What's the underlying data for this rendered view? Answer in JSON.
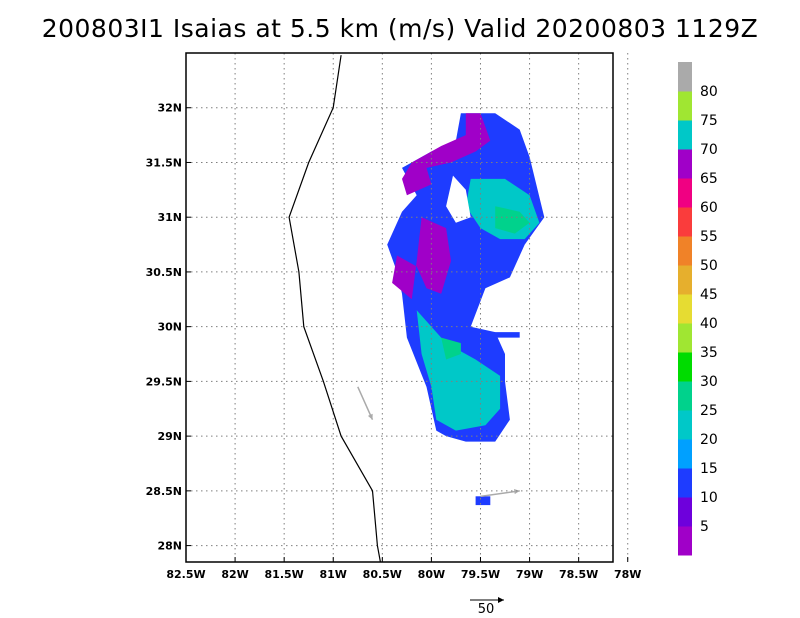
{
  "chart_data": {
    "type": "heatmap",
    "title": "200803I1 Isaias at 5.5 km (m/s) Valid 20200803 1129Z",
    "x_ticks": [
      "82.5W",
      "82W",
      "81.5W",
      "81W",
      "80.5W",
      "80W",
      "79.5W",
      "79W",
      "78.5W",
      "78W"
    ],
    "x_values": [
      -82.5,
      -82,
      -81.5,
      -81,
      -80.5,
      -80,
      -79.5,
      -79,
      -78.5,
      -78
    ],
    "y_ticks": [
      "28N",
      "28.5N",
      "29N",
      "29.5N",
      "30N",
      "30.5N",
      "31N",
      "31.5N",
      "32N"
    ],
    "y_values": [
      28,
      28.5,
      29,
      29.5,
      30,
      30.5,
      31,
      31.5,
      32
    ],
    "xlim": [
      -82.5,
      -78.15
    ],
    "ylim": [
      27.85,
      32.5
    ],
    "grid": true,
    "colorbar": {
      "labels": [
        "5",
        "10",
        "15",
        "20",
        "25",
        "30",
        "35",
        "40",
        "45",
        "50",
        "55",
        "60",
        "65",
        "70",
        "75",
        "80"
      ],
      "label_values": [
        5,
        10,
        15,
        20,
        25,
        30,
        35,
        40,
        45,
        50,
        55,
        60,
        65,
        70,
        75,
        80
      ],
      "colors": [
        "#a000c8",
        "#6e00dc",
        "#1e3cff",
        "#00a0ff",
        "#00c8c8",
        "#00d28c",
        "#00dc00",
        "#a0e632",
        "#e6dc32",
        "#e6af2d",
        "#f08228",
        "#fa3c3c",
        "#f00082",
        "#a000c8",
        "#00c8c8",
        "#a0e632",
        "#aaaaaa"
      ]
    },
    "coastline": [
      [
        -80.92,
        32.48
      ],
      [
        -81.0,
        32.0
      ],
      [
        -81.25,
        31.5
      ],
      [
        -81.45,
        31.0
      ],
      [
        -81.35,
        30.5
      ],
      [
        -81.3,
        30.0
      ],
      [
        -81.1,
        29.5
      ],
      [
        -80.92,
        29.0
      ],
      [
        -80.6,
        28.5
      ],
      [
        -80.55,
        28.0
      ],
      [
        -80.52,
        27.85
      ]
    ],
    "wind_regions": [
      {
        "name": "outer-blue",
        "speed": 14,
        "polygon": [
          [
            -79.7,
            31.95
          ],
          [
            -79.35,
            31.95
          ],
          [
            -79.1,
            31.8
          ],
          [
            -79.0,
            31.55
          ],
          [
            -78.85,
            31.0
          ],
          [
            -79.05,
            30.75
          ],
          [
            -79.2,
            30.45
          ],
          [
            -79.45,
            30.35
          ],
          [
            -79.6,
            30.0
          ],
          [
            -79.35,
            29.95
          ],
          [
            -79.25,
            29.75
          ],
          [
            -79.25,
            29.5
          ],
          [
            -79.2,
            29.15
          ],
          [
            -79.35,
            28.95
          ],
          [
            -79.65,
            28.95
          ],
          [
            -79.85,
            29.0
          ],
          [
            -79.95,
            29.05
          ],
          [
            -80.05,
            29.45
          ],
          [
            -80.25,
            29.9
          ],
          [
            -80.3,
            30.3
          ],
          [
            -80.35,
            30.5
          ],
          [
            -80.45,
            30.75
          ],
          [
            -80.3,
            31.05
          ],
          [
            -80.15,
            31.2
          ],
          [
            -80.3,
            31.45
          ],
          [
            -80.0,
            31.6
          ],
          [
            -79.75,
            31.7
          ]
        ]
      },
      {
        "name": "purple-north",
        "speed": 67,
        "polygon": [
          [
            -79.65,
            31.95
          ],
          [
            -79.5,
            31.95
          ],
          [
            -79.4,
            31.7
          ],
          [
            -79.55,
            31.6
          ],
          [
            -79.8,
            31.5
          ],
          [
            -80.05,
            31.45
          ],
          [
            -80.0,
            31.3
          ],
          [
            -80.25,
            31.2
          ],
          [
            -80.3,
            31.35
          ],
          [
            -80.2,
            31.5
          ],
          [
            -79.9,
            31.65
          ],
          [
            -79.65,
            31.75
          ]
        ]
      },
      {
        "name": "purple-west",
        "speed": 67,
        "polygon": [
          [
            -80.1,
            31.0
          ],
          [
            -79.85,
            30.9
          ],
          [
            -79.8,
            30.6
          ],
          [
            -79.85,
            30.45
          ],
          [
            -79.9,
            30.3
          ],
          [
            -80.05,
            30.35
          ],
          [
            -80.15,
            30.55
          ],
          [
            -80.35,
            30.65
          ],
          [
            -80.4,
            30.4
          ],
          [
            -80.2,
            30.25
          ],
          [
            -80.15,
            30.6
          ]
        ]
      },
      {
        "name": "cyan-northeast",
        "speed": 21,
        "polygon": [
          [
            -79.6,
            31.35
          ],
          [
            -79.25,
            31.35
          ],
          [
            -79.0,
            31.2
          ],
          [
            -78.9,
            30.95
          ],
          [
            -79.05,
            30.8
          ],
          [
            -79.3,
            30.8
          ],
          [
            -79.5,
            30.9
          ],
          [
            -79.65,
            31.1
          ]
        ]
      },
      {
        "name": "cyan-south",
        "speed": 21,
        "polygon": [
          [
            -80.15,
            30.15
          ],
          [
            -79.85,
            29.85
          ],
          [
            -79.55,
            29.7
          ],
          [
            -79.3,
            29.55
          ],
          [
            -79.3,
            29.25
          ],
          [
            -79.45,
            29.1
          ],
          [
            -79.75,
            29.05
          ],
          [
            -79.95,
            29.15
          ],
          [
            -80.0,
            29.45
          ],
          [
            -80.1,
            29.75
          ]
        ]
      },
      {
        "name": "green-core-north",
        "speed": 26,
        "polygon": [
          [
            -79.35,
            31.1
          ],
          [
            -79.1,
            31.05
          ],
          [
            -79.0,
            30.95
          ],
          [
            -79.15,
            30.85
          ],
          [
            -79.35,
            30.9
          ]
        ]
      },
      {
        "name": "green-core-south",
        "speed": 26,
        "polygon": [
          [
            -79.9,
            29.9
          ],
          [
            -79.7,
            29.85
          ],
          [
            -79.7,
            29.75
          ],
          [
            -79.85,
            29.7
          ]
        ]
      },
      {
        "name": "eye-hole",
        "speed": 0,
        "polygon": [
          [
            -79.78,
            31.38
          ],
          [
            -79.65,
            31.25
          ],
          [
            -79.6,
            31.0
          ],
          [
            -79.75,
            30.95
          ],
          [
            -79.85,
            31.1
          ]
        ]
      },
      {
        "name": "band-east",
        "speed": 11,
        "polygon": [
          [
            -79.75,
            29.95
          ],
          [
            -79.1,
            29.95
          ],
          [
            -79.1,
            29.9
          ],
          [
            -79.75,
            29.9
          ]
        ]
      },
      {
        "name": "blob-south",
        "speed": 12,
        "polygon": [
          [
            -79.55,
            28.45
          ],
          [
            -79.4,
            28.45
          ],
          [
            -79.4,
            28.37
          ],
          [
            -79.55,
            28.37
          ]
        ]
      }
    ],
    "vectors": [
      {
        "lon": -80.75,
        "lat": 29.45,
        "dx": 0.15,
        "dy": -0.3
      },
      {
        "lon": -79.5,
        "lat": 28.45,
        "dx": 0.4,
        "dy": 0.05
      }
    ],
    "scale_vector": {
      "label": "50"
    }
  }
}
